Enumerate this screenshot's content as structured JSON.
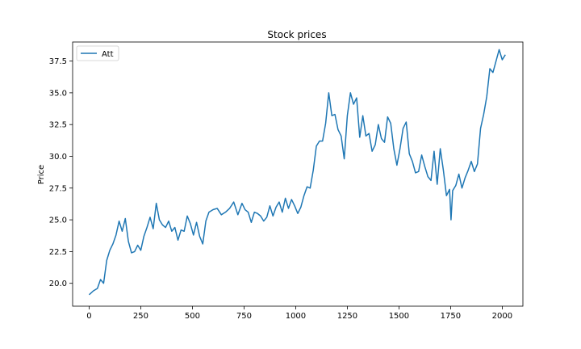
{
  "chart_data": {
    "type": "line",
    "title": "Stock prices",
    "xlabel": "",
    "ylabel": "Price",
    "xlim": [
      -80,
      2100
    ],
    "ylim": [
      18.2,
      39.0
    ],
    "xticks": [
      0,
      250,
      500,
      750,
      1000,
      1250,
      1500,
      1750,
      2000
    ],
    "xtick_labels": [
      "0",
      "250",
      "500",
      "750",
      "1000",
      "1250",
      "1500",
      "1750",
      "2000"
    ],
    "yticks": [
      20.0,
      22.5,
      25.0,
      27.5,
      30.0,
      32.5,
      35.0,
      37.5
    ],
    "ytick_labels": [
      "20.0",
      "22.5",
      "25.0",
      "27.5",
      "30.0",
      "32.5",
      "35.0",
      "37.5"
    ],
    "grid": false,
    "legend": {
      "position": "upper-left",
      "entries": [
        "Att"
      ]
    },
    "series": [
      {
        "name": "Att",
        "color": "#1f77b4",
        "x": [
          0,
          20,
          40,
          55,
          70,
          85,
          100,
          115,
          130,
          145,
          160,
          175,
          190,
          205,
          220,
          235,
          250,
          265,
          280,
          295,
          310,
          325,
          340,
          355,
          370,
          385,
          400,
          415,
          430,
          445,
          460,
          475,
          490,
          505,
          520,
          535,
          550,
          565,
          580,
          600,
          620,
          640,
          660,
          680,
          700,
          720,
          740,
          755,
          770,
          785,
          800,
          815,
          830,
          845,
          860,
          875,
          890,
          905,
          920,
          935,
          950,
          965,
          980,
          995,
          1010,
          1025,
          1040,
          1055,
          1070,
          1085,
          1100,
          1115,
          1130,
          1145,
          1160,
          1175,
          1190,
          1205,
          1220,
          1235,
          1250,
          1265,
          1280,
          1295,
          1310,
          1325,
          1340,
          1355,
          1370,
          1385,
          1400,
          1415,
          1430,
          1445,
          1460,
          1475,
          1490,
          1505,
          1520,
          1535,
          1550,
          1565,
          1580,
          1595,
          1610,
          1625,
          1640,
          1655,
          1670,
          1685,
          1700,
          1715,
          1730,
          1745,
          1752,
          1760,
          1775,
          1790,
          1805,
          1820,
          1835,
          1850,
          1865,
          1880,
          1895,
          1910,
          1925,
          1940,
          1955,
          1970,
          1985,
          2000,
          2015
        ],
        "y": [
          19.1,
          19.4,
          19.6,
          20.3,
          20.0,
          21.8,
          22.6,
          23.1,
          23.8,
          24.9,
          24.1,
          25.1,
          23.3,
          22.4,
          22.5,
          23.0,
          22.6,
          23.7,
          24.4,
          25.2,
          24.3,
          26.3,
          25.0,
          24.6,
          24.4,
          24.9,
          24.1,
          24.4,
          23.4,
          24.2,
          24.1,
          25.3,
          24.7,
          23.8,
          24.8,
          23.7,
          23.1,
          24.9,
          25.6,
          25.8,
          25.9,
          25.4,
          25.6,
          25.9,
          26.4,
          25.4,
          26.3,
          25.8,
          25.6,
          24.8,
          25.6,
          25.5,
          25.3,
          24.9,
          25.2,
          26.1,
          25.3,
          26.0,
          26.4,
          25.6,
          26.7,
          25.9,
          26.6,
          26.1,
          25.5,
          26.0,
          26.9,
          27.6,
          27.5,
          28.9,
          30.8,
          31.2,
          31.2,
          32.6,
          35.0,
          33.2,
          33.3,
          32.1,
          31.6,
          29.8,
          33.2,
          35.0,
          34.1,
          34.6,
          31.5,
          33.2,
          31.6,
          31.8,
          30.4,
          30.9,
          32.5,
          31.4,
          31.1,
          33.1,
          32.6,
          30.6,
          29.3,
          30.6,
          32.2,
          32.7,
          30.2,
          29.6,
          28.7,
          28.8,
          30.1,
          29.2,
          28.4,
          28.1,
          30.4,
          27.8,
          30.6,
          28.9,
          26.9,
          27.4,
          25.0,
          27.3,
          27.7,
          28.6,
          27.5,
          28.3,
          28.9,
          29.6,
          28.8,
          29.4,
          32.2,
          33.3,
          34.7,
          36.9,
          36.6,
          37.5,
          38.4,
          37.6,
          38.0
        ]
      }
    ]
  }
}
